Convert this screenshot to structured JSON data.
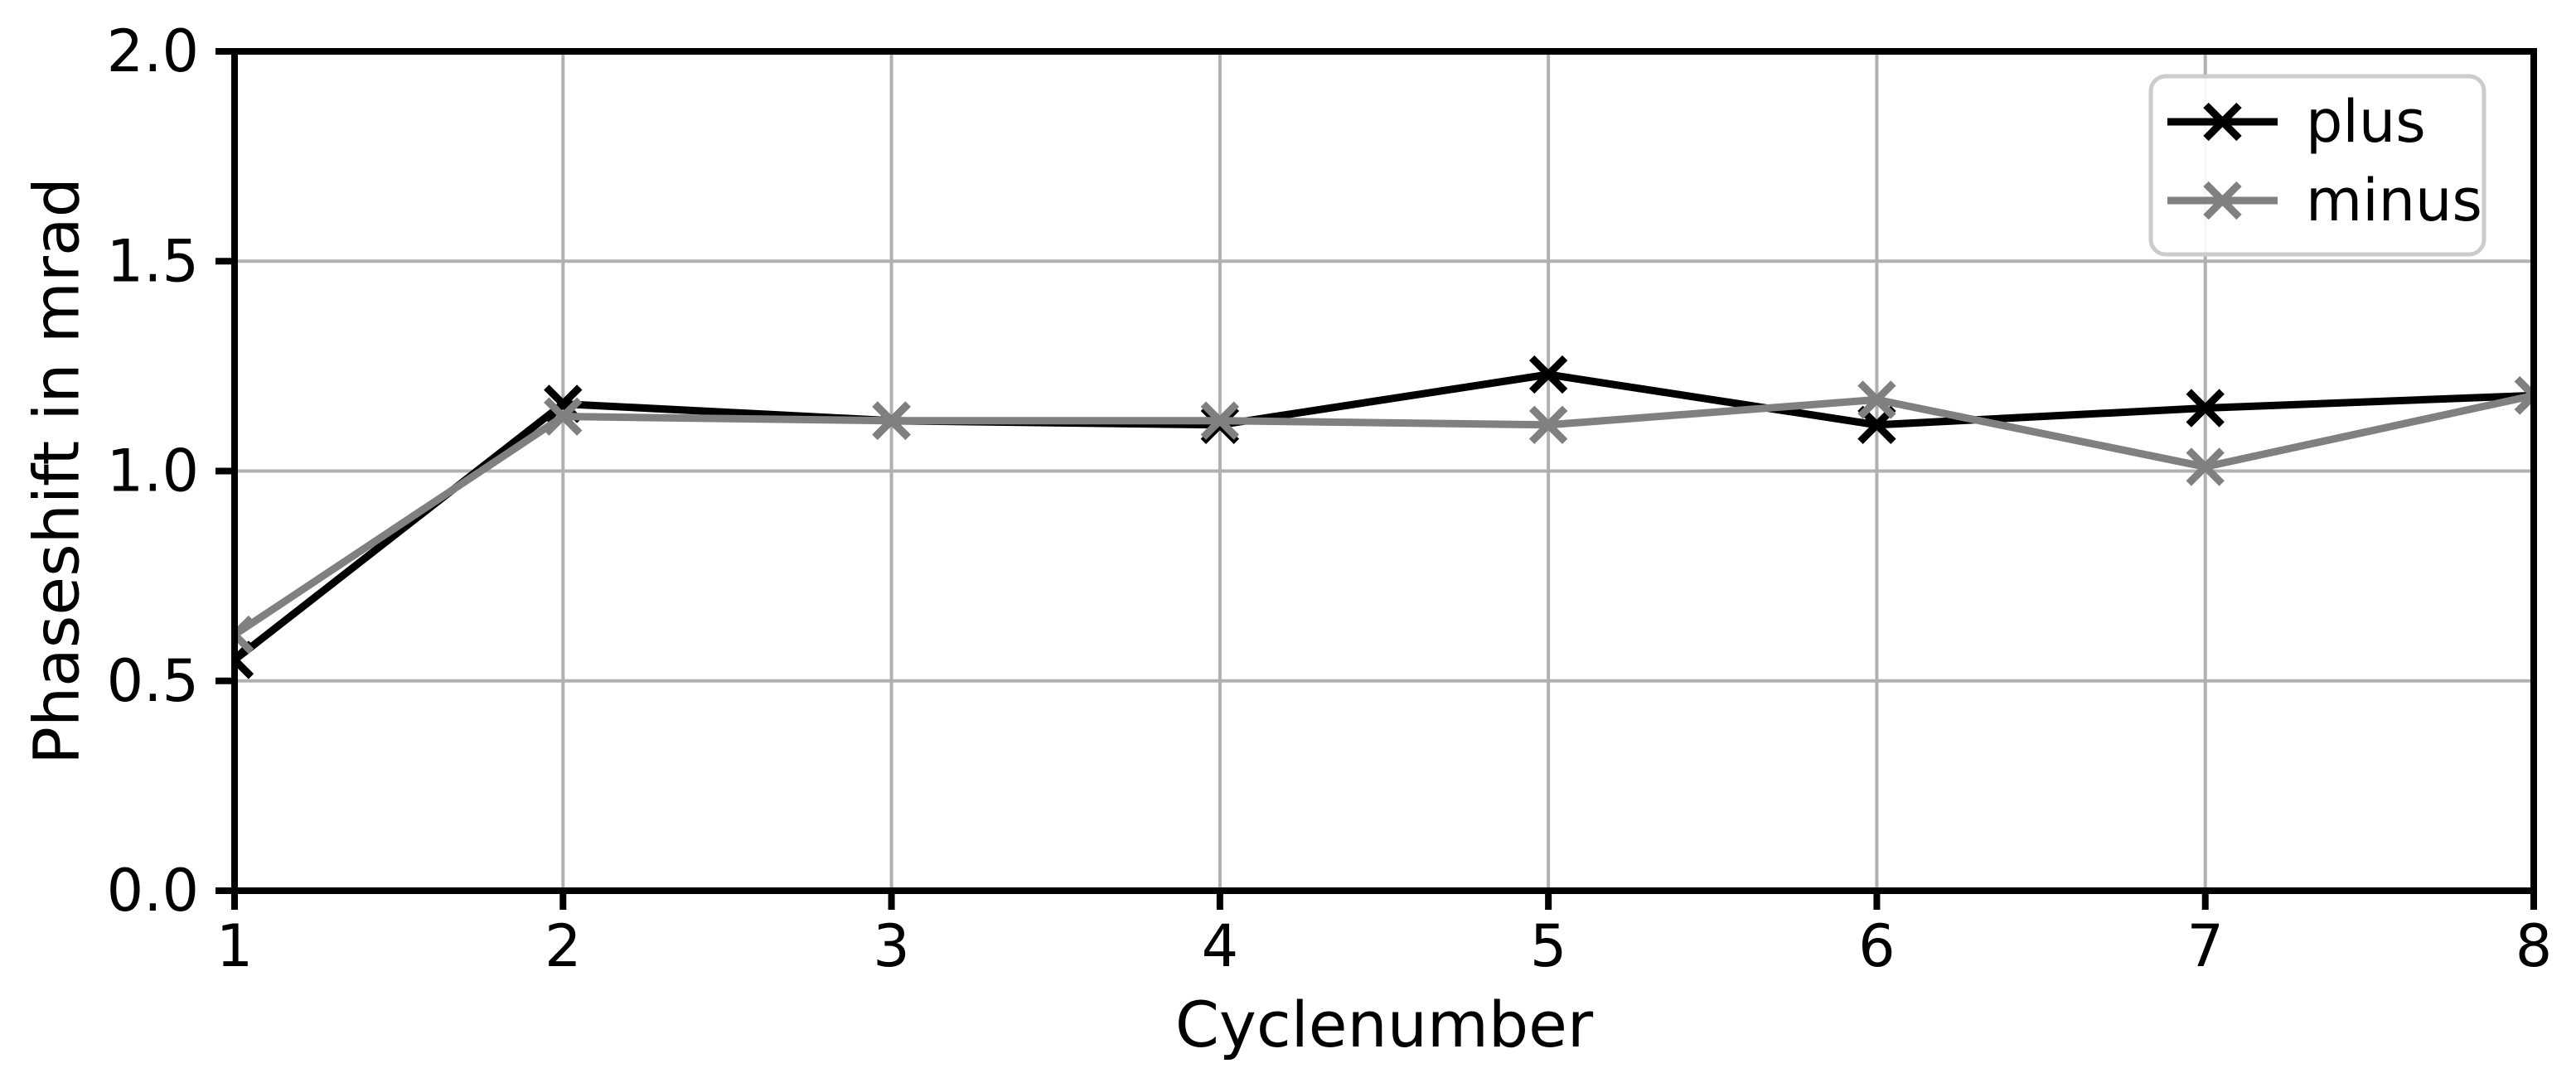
{
  "chart_data": {
    "type": "line",
    "title": "",
    "xlabel": "Cyclenumber",
    "ylabel": "Phaseshift in mrad",
    "xlim": [
      1,
      8
    ],
    "ylim": [
      0.0,
      2.0
    ],
    "xticks": [
      1,
      2,
      3,
      4,
      5,
      6,
      7,
      8
    ],
    "xtick_labels": [
      "1",
      "2",
      "3",
      "4",
      "5",
      "6",
      "7",
      "8"
    ],
    "yticks": [
      0.0,
      0.5,
      1.0,
      1.5,
      2.0
    ],
    "ytick_labels": [
      "0.0",
      "0.5",
      "1.0",
      "1.5",
      "2.0"
    ],
    "grid": true,
    "marker": "x",
    "legend_position": "upper right",
    "x": [
      1,
      2,
      3,
      4,
      5,
      6,
      7,
      8
    ],
    "series": [
      {
        "name": "plus",
        "color": "#000000",
        "values": [
          0.55,
          1.16,
          1.12,
          1.11,
          1.23,
          1.11,
          1.15,
          1.18
        ]
      },
      {
        "name": "minus",
        "color": "#808080",
        "values": [
          0.61,
          1.13,
          1.12,
          1.12,
          1.11,
          1.17,
          1.01,
          1.18
        ]
      }
    ],
    "colors": {
      "background": "#ffffff",
      "grid": "#b0b0b0",
      "axis": "#000000",
      "tick_label": "#000000",
      "legend_border": "#cccccc",
      "legend_background": "#ffffff"
    }
  }
}
